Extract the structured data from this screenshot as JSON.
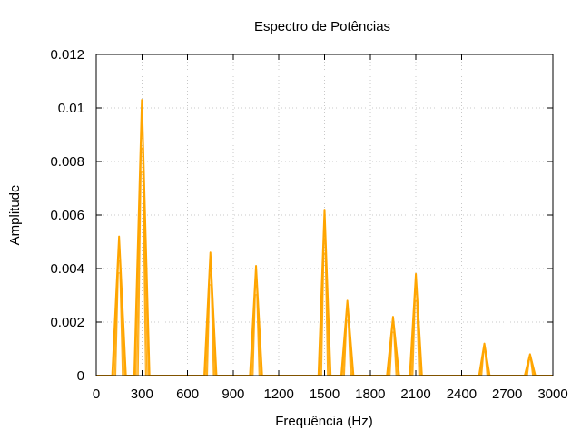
{
  "chart_data": {
    "type": "line",
    "title": "Espectro de Potências",
    "xlabel": "Frequência (Hz)",
    "ylabel": "Amplitude",
    "xlim": [
      0,
      3000
    ],
    "ylim": [
      0,
      0.012
    ],
    "x_ticks": [
      0,
      300,
      600,
      900,
      1200,
      1500,
      1800,
      2100,
      2400,
      2700,
      3000
    ],
    "y_ticks": [
      0,
      0.002,
      0.004,
      0.006,
      0.008,
      0.01,
      0.012
    ],
    "x_tick_labels": [
      "0",
      "300",
      "600",
      "900",
      "1200",
      "1500",
      "1800",
      "2100",
      "2400",
      "2700",
      "3000"
    ],
    "y_tick_labels": [
      "0",
      "0.002",
      "0.004",
      "0.006",
      "0.008",
      "0.01",
      "0.012"
    ],
    "grid": true,
    "legend": "none",
    "series": [
      {
        "color": "#ffa500",
        "peaks": [
          {
            "frequency": 150,
            "amplitude": 0.0052,
            "half_width": 45
          },
          {
            "frequency": 300,
            "amplitude": 0.0103,
            "half_width": 50
          },
          {
            "frequency": 750,
            "amplitude": 0.0046,
            "half_width": 40
          },
          {
            "frequency": 1050,
            "amplitude": 0.0041,
            "half_width": 40
          },
          {
            "frequency": 1500,
            "amplitude": 0.0062,
            "half_width": 40
          },
          {
            "frequency": 1650,
            "amplitude": 0.0028,
            "half_width": 40
          },
          {
            "frequency": 1950,
            "amplitude": 0.0022,
            "half_width": 40
          },
          {
            "frequency": 2100,
            "amplitude": 0.0038,
            "half_width": 40
          },
          {
            "frequency": 2550,
            "amplitude": 0.0012,
            "half_width": 35
          },
          {
            "frequency": 2850,
            "amplitude": 0.0008,
            "half_width": 35
          }
        ]
      }
    ]
  }
}
